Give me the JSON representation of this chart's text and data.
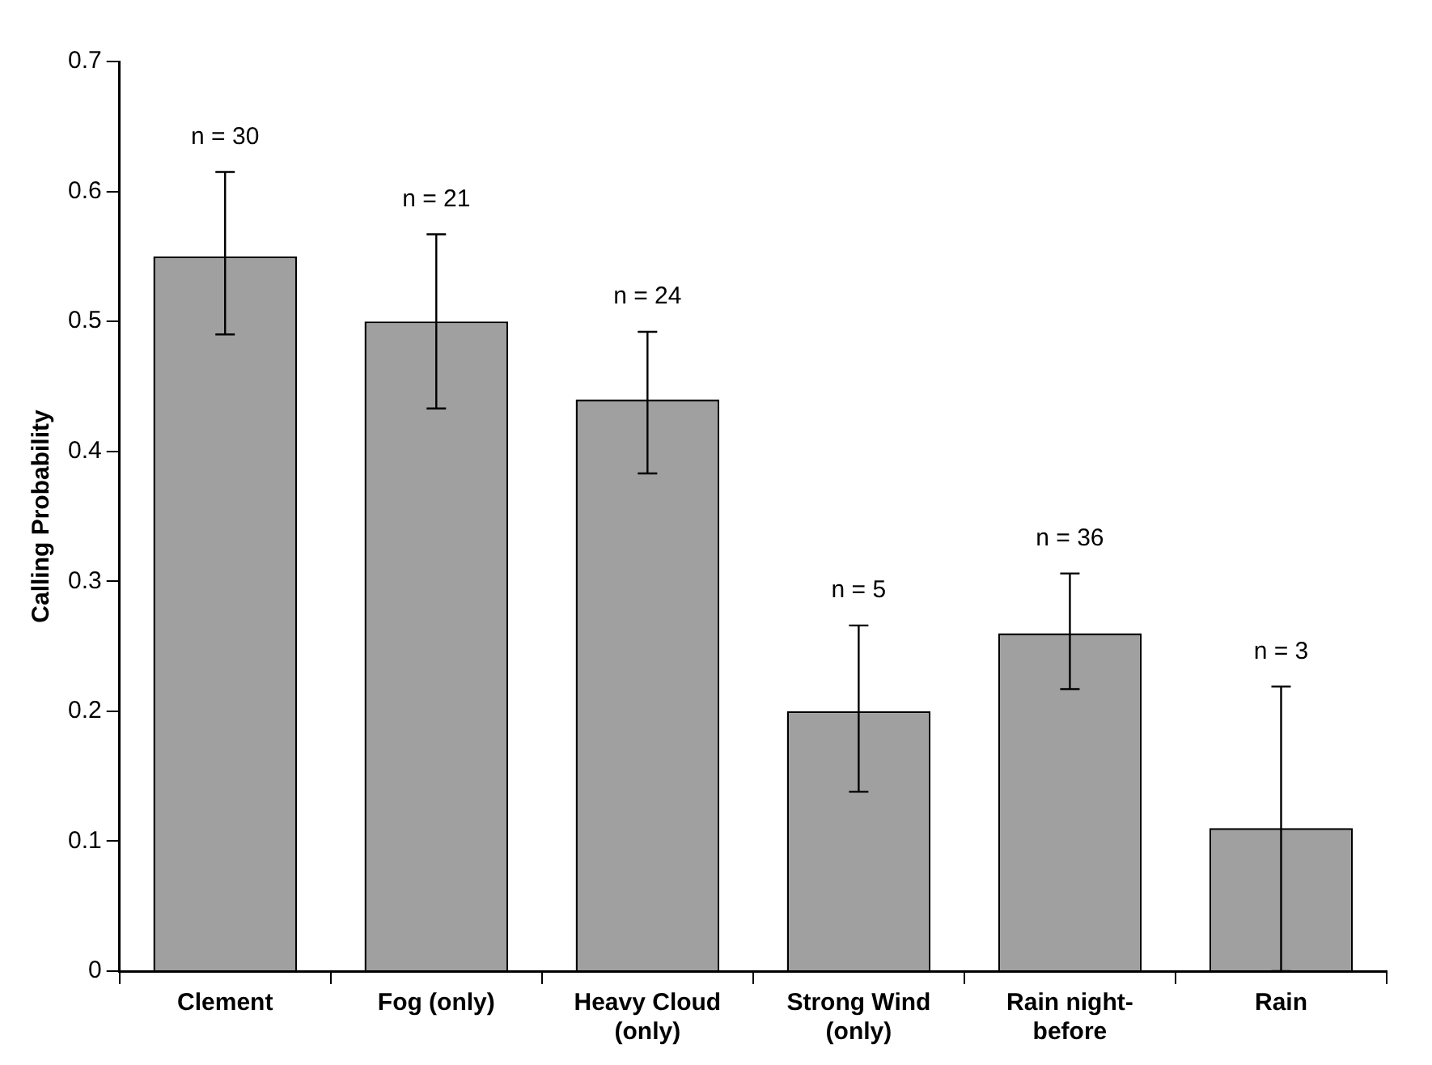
{
  "chart_data": {
    "type": "bar",
    "ylabel": "Calling Probability",
    "categories": [
      "Clement",
      "Fog (only)",
      "Heavy Cloud (only)",
      "Strong Wind (only)",
      "Rain night-before",
      "Rain"
    ],
    "values": [
      0.55,
      0.5,
      0.44,
      0.2,
      0.26,
      0.11
    ],
    "errors": [
      [
        0.49,
        0.615
      ],
      [
        0.433,
        0.567
      ],
      [
        0.383,
        0.492
      ],
      [
        0.138,
        0.266
      ],
      [
        0.217,
        0.306
      ],
      [
        0,
        0.219
      ]
    ],
    "color": "#a0a0a0",
    "ylim": [
      0,
      0.7
    ],
    "yticks": [
      0,
      0.1,
      0.2,
      0.3,
      0.4,
      0.5,
      0.6,
      0.7
    ],
    "grid": false,
    "legend": false,
    "annotations": [
      {
        "text": "n = 30",
        "x": "Clement",
        "y": 0.615
      },
      {
        "text": "n = 21",
        "x": "Fog (only)",
        "y": 0.567
      },
      {
        "text": "n = 24",
        "x": "Heavy Cloud (only)",
        "y": 0.492
      },
      {
        "text": "n = 5",
        "x": "Strong Wind (only)",
        "y": 0.266
      },
      {
        "text": "n = 36",
        "x": "Rain night-before",
        "y": 0.306
      },
      {
        "text": "n = 3",
        "x": "Rain",
        "y": 0.219
      }
    ]
  }
}
